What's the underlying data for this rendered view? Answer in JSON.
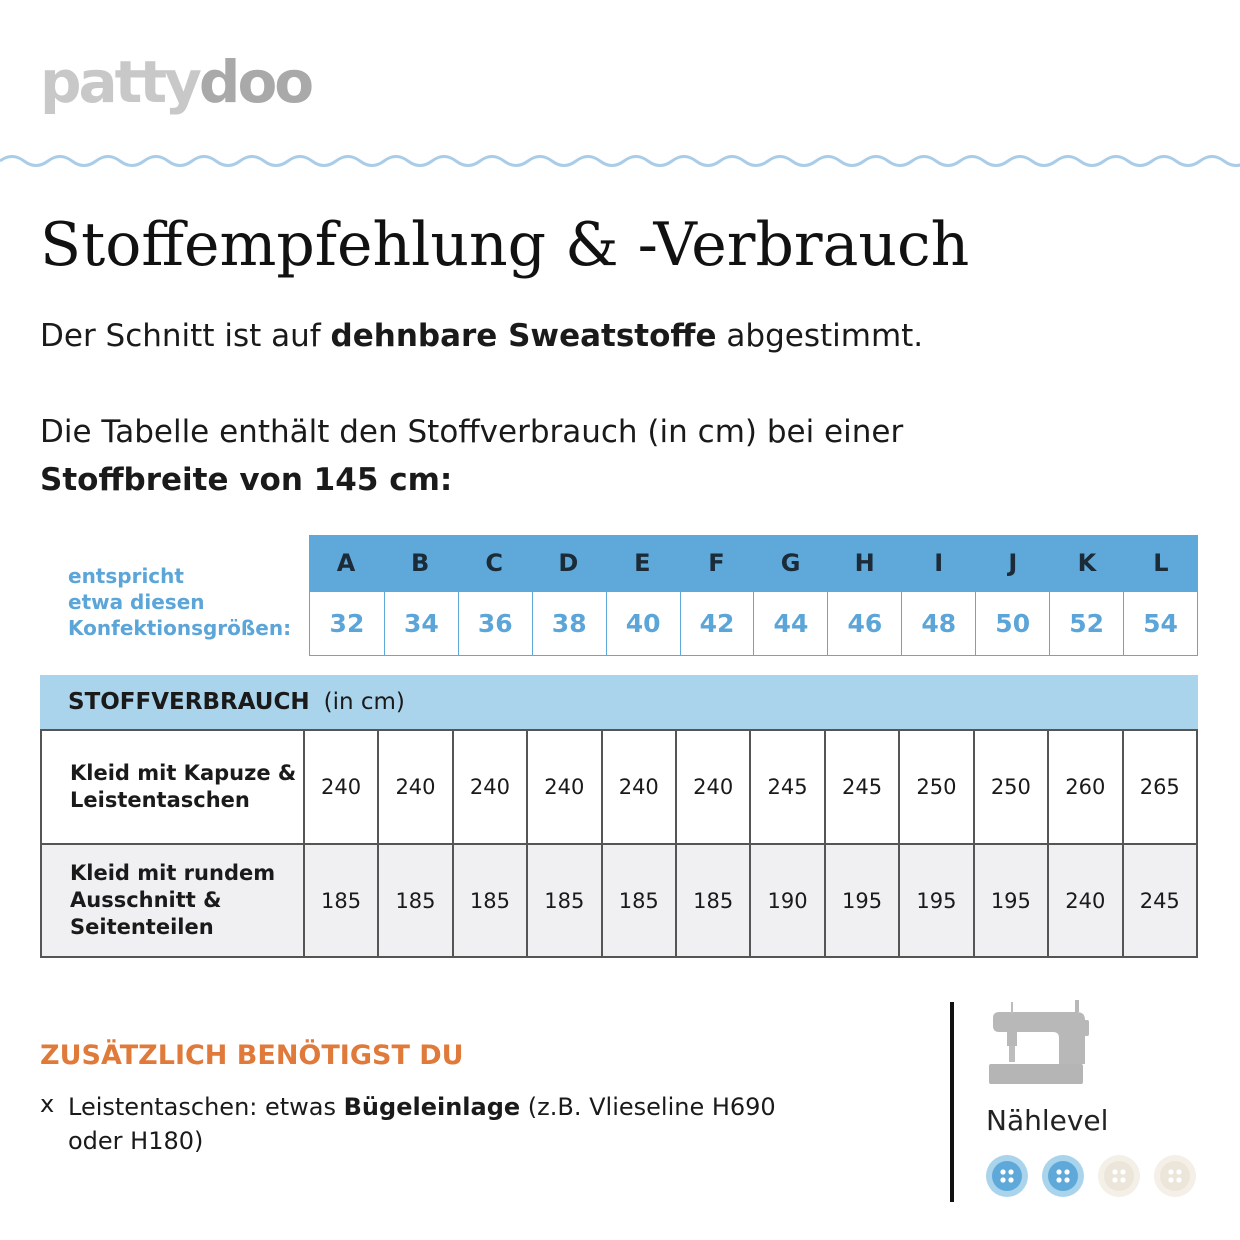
{
  "brand": {
    "part1": "patty",
    "part2": "doo"
  },
  "title": "Stoffempfehlung & -Verbrauch",
  "intro": {
    "before": "Der Schnitt ist auf ",
    "bold": "dehnbare Sweatstoffe",
    "after": " abgestimmt."
  },
  "table_intro": {
    "line1": "Die Tabelle enthält den Stoffverbrauch (in cm) bei einer",
    "line2": "Stoffbreite von 145 cm:"
  },
  "size_label": {
    "line1": "entspricht",
    "line2": "etwa diesen",
    "line3": "Konfektionsgrößen:"
  },
  "letters": [
    "A",
    "B",
    "C",
    "D",
    "E",
    "F",
    "G",
    "H",
    "I",
    "J",
    "K",
    "L"
  ],
  "sizes": [
    "32",
    "34",
    "36",
    "38",
    "40",
    "42",
    "44",
    "46",
    "48",
    "50",
    "52",
    "54"
  ],
  "usage": {
    "heading": "STOFFVERBRAUCH",
    "unit": "(in cm)",
    "rows": [
      {
        "label_line1": "Kleid mit Kapuze &",
        "label_line2": "Leistentaschen",
        "label_line3": "",
        "values": [
          "240",
          "240",
          "240",
          "240",
          "240",
          "240",
          "245",
          "245",
          "250",
          "250",
          "260",
          "265"
        ]
      },
      {
        "label_line1": "Kleid mit rundem",
        "label_line2": "Ausschnitt &",
        "label_line3": "Seitenteilen",
        "values": [
          "185",
          "185",
          "185",
          "185",
          "185",
          "185",
          "190",
          "195",
          "195",
          "195",
          "240",
          "245"
        ]
      }
    ]
  },
  "extra": {
    "heading": "ZUSÄTZLICH BENÖTIGST DU",
    "bullet": "x",
    "before": "Leistentaschen: etwas ",
    "bold": "Bügeleinlage",
    "after": " (z.B. Vlieseline H690 oder H180)"
  },
  "level": {
    "label": "Nählevel",
    "value": 2,
    "max": 4,
    "icon": "sewing-machine-icon"
  },
  "colors": {
    "blue": "#5ea9da",
    "light_blue": "#a9d4ec",
    "orange": "#e07a3a",
    "beige": "#ece6da"
  }
}
